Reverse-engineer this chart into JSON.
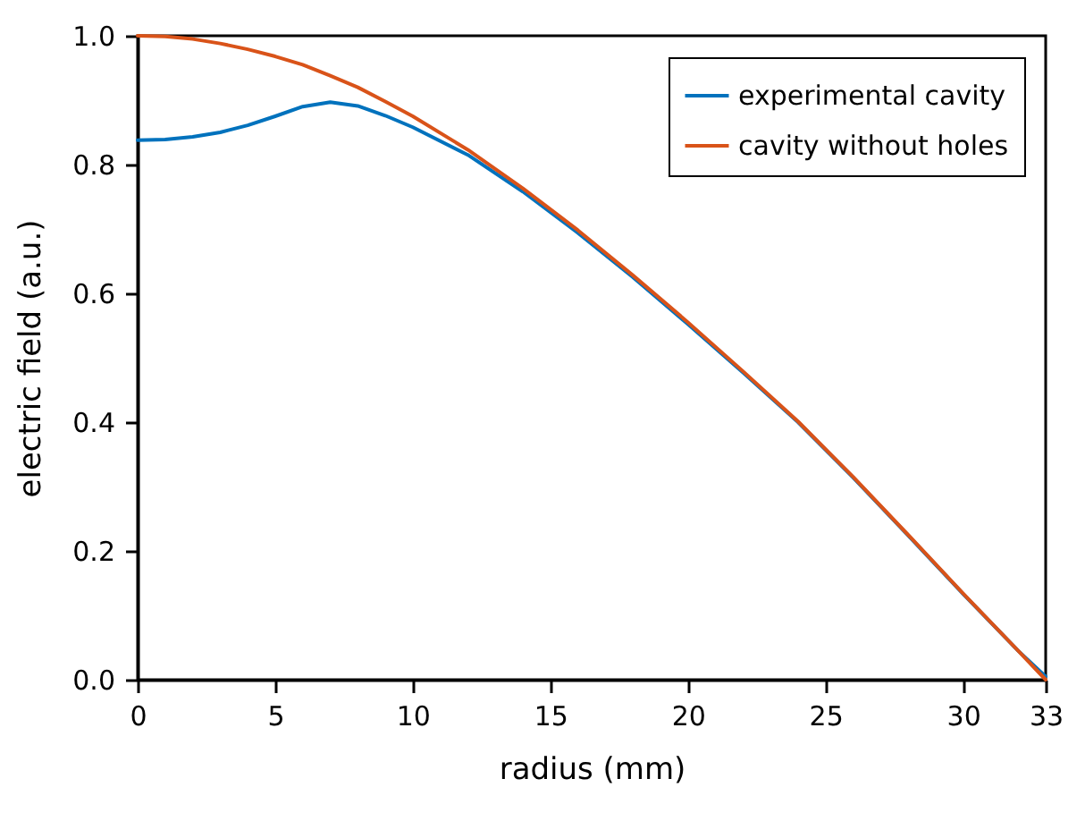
{
  "chart_data": {
    "type": "line",
    "xlabel": "radius (mm)",
    "ylabel": "electric field (a.u.)",
    "xlim": [
      0,
      33
    ],
    "xticks": [
      0,
      5,
      10,
      15,
      20,
      25,
      30,
      33
    ],
    "ylim": [
      0,
      1.0
    ],
    "yticks": [
      {
        "value": 0,
        "label": "0.0"
      },
      {
        "value": 0.2,
        "label": "0.2"
      },
      {
        "value": 0.4,
        "label": "0.4"
      },
      {
        "value": 0.6,
        "label": "0.6"
      },
      {
        "value": 0.8,
        "label": "0.8"
      },
      {
        "value": 1.0,
        "label": "1.0"
      }
    ],
    "x": [
      0,
      1,
      2,
      3,
      4,
      5,
      6,
      7,
      8,
      9,
      10,
      12,
      14,
      16,
      18,
      20,
      22,
      24,
      26,
      28,
      30,
      32,
      33
    ],
    "series": [
      {
        "name": "experimental cavity",
        "color": "#0072bd",
        "values": [
          0.838,
          0.839,
          0.843,
          0.85,
          0.861,
          0.875,
          0.89,
          0.897,
          0.891,
          0.876,
          0.858,
          0.815,
          0.758,
          0.694,
          0.625,
          0.552,
          0.477,
          0.4,
          0.314,
          0.224,
          0.133,
          0.045,
          0.005
        ]
      },
      {
        "name": "cavity without holes",
        "color": "#d95319",
        "values": [
          1.0,
          0.999,
          0.995,
          0.988,
          0.979,
          0.968,
          0.955,
          0.938,
          0.92,
          0.898,
          0.875,
          0.823,
          0.763,
          0.698,
          0.628,
          0.555,
          0.479,
          0.401,
          0.315,
          0.225,
          0.134,
          0.045,
          0.0
        ]
      }
    ],
    "legend": "top right",
    "grid": false
  }
}
